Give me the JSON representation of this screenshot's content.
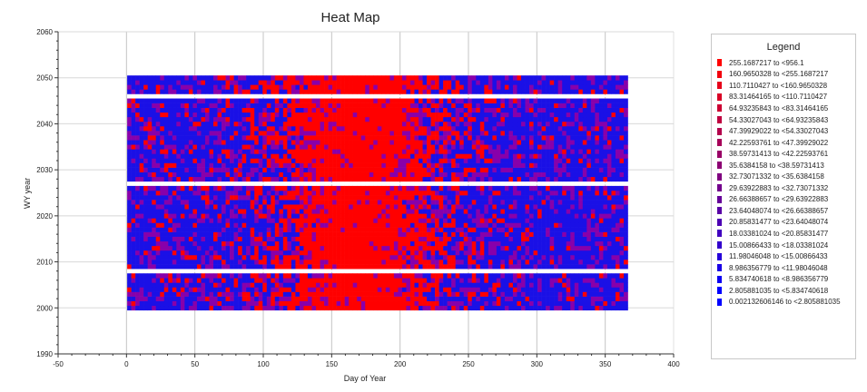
{
  "chart_data": {
    "type": "heatmap",
    "title": "Heat Map",
    "xlabel": "Day of Year",
    "ylabel": "WY year",
    "xlim": [
      -50,
      400
    ],
    "ylim": [
      1990,
      2060
    ],
    "xticks": [
      "-50",
      "0",
      "50",
      "100",
      "150",
      "200",
      "250",
      "300",
      "350",
      "400"
    ],
    "yticks": [
      "1990",
      "2000",
      "2010",
      "2020",
      "2030",
      "2040",
      "2050",
      "2060"
    ],
    "x_range": [
      1,
      366
    ],
    "y_range": [
      2000,
      2050
    ],
    "gap_years": [
      2008,
      2027,
      2046
    ],
    "grid": true,
    "legend_position": "right",
    "legend": {
      "title": "Legend",
      "entries": [
        {
          "label": "255.1687217 to <956.1",
          "color": "#ff0000"
        },
        {
          "label": "160.9650328 to <255.1687217",
          "color": "#f2000d"
        },
        {
          "label": "110.7110427 to <160.9650328",
          "color": "#e6001a"
        },
        {
          "label": "83.31464165 to <110.7110427",
          "color": "#d90026"
        },
        {
          "label": "64.93235843 to <83.31464165",
          "color": "#cc0033"
        },
        {
          "label": "54.33027043 to <64.93235843",
          "color": "#bf0040"
        },
        {
          "label": "47.39929022 to <54.33027043",
          "color": "#b3004c"
        },
        {
          "label": "42.22593761 to <47.39929022",
          "color": "#a60059"
        },
        {
          "label": "38.59731413 to <42.22593761",
          "color": "#990066"
        },
        {
          "label": "35.6384158 to <38.59731413",
          "color": "#8c0073"
        },
        {
          "label": "32.73071332 to <35.6384158",
          "color": "#800080"
        },
        {
          "label": "29.63922883 to <32.73071332",
          "color": "#73008c"
        },
        {
          "label": "26.66388657 to <29.63922883",
          "color": "#660099"
        },
        {
          "label": "23.64048074 to <26.66388657",
          "color": "#5900a6"
        },
        {
          "label": "20.85831477 to <23.64048074",
          "color": "#4c00b3"
        },
        {
          "label": "18.03381024 to <20.85831477",
          "color": "#4000bf"
        },
        {
          "label": "15.00866433 to <18.03381024",
          "color": "#3300cc"
        },
        {
          "label": "11.98046048 to <15.00866433",
          "color": "#2600d9"
        },
        {
          "label": "8.986356779 to <11.98046048",
          "color": "#1a00e6"
        },
        {
          "label": "5.834740618 to <8.986356779",
          "color": "#0d00f2"
        },
        {
          "label": "2.805881035 to <5.834740618",
          "color": "#0000ff"
        },
        {
          "label": "0.002132606146 to <2.805881035",
          "color": "#0000ff"
        }
      ]
    }
  }
}
